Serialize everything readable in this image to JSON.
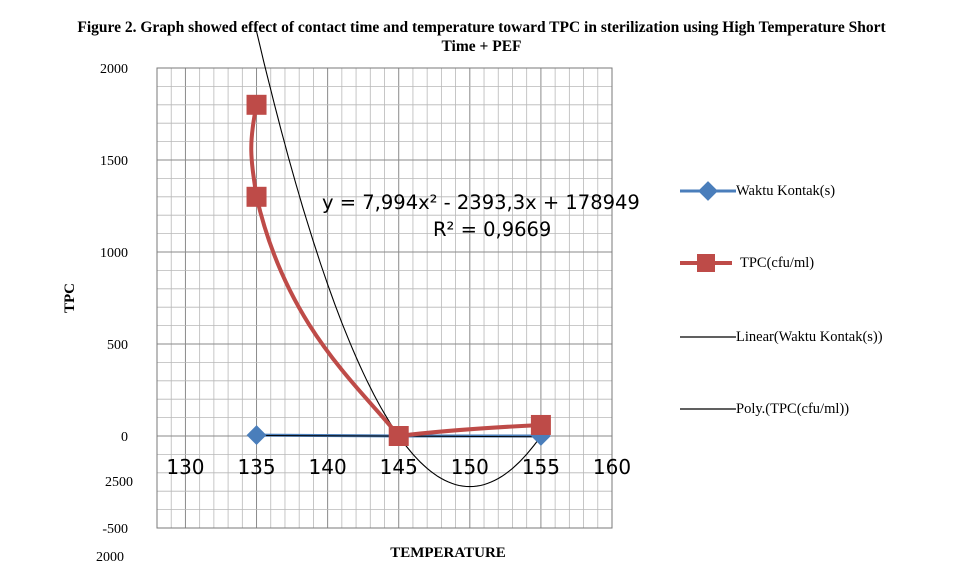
{
  "figure": {
    "title_line1": "Figure 2. Graph showed effect of contact time and temperature toward TPC in sterilization using High Temperature Short",
    "title_line2": "Time + PEF"
  },
  "chart_data": {
    "type": "scatter",
    "title": "Figure 2. Graph showed effect of contact time and temperature toward TPC in sterilization using High Temperature Short Time + PEF",
    "xlabel": "TEMPERATURE",
    "ylabel": "TPC",
    "xlim": [
      128,
      160
    ],
    "ylim": [
      -500,
      2000
    ],
    "x_ticks": [
      "130",
      "135",
      "140",
      "145",
      "150",
      "155",
      "160"
    ],
    "y_ticks": [
      "2000",
      "1500",
      "1000",
      "500",
      "0",
      "-500"
    ],
    "y_tick_extra": [
      "2500",
      "2000"
    ],
    "grid": true,
    "legend_position": "right",
    "series": [
      {
        "name": "Waktu Kontak(s)",
        "color": "#4a7ebb",
        "marker": "diamond",
        "x": [
          135,
          145,
          155
        ],
        "y": [
          5,
          0,
          0
        ]
      },
      {
        "name": "TPC(cfu/ml)",
        "color": "#be4b48",
        "marker": "square",
        "x": [
          135,
          135,
          145,
          155
        ],
        "y": [
          1800,
          1300,
          0,
          60
        ]
      }
    ],
    "trendlines": [
      {
        "name": "Linear(Waktu Kontak(s))",
        "color": "#000000",
        "type": "linear"
      },
      {
        "name": "Poly.(TPC(cfu/ml))",
        "color": "#000000",
        "type": "polynomial",
        "equation": "y = 7,994x² - 2393,3x + 178949",
        "r_squared": "R² = 0,9669"
      }
    ]
  }
}
